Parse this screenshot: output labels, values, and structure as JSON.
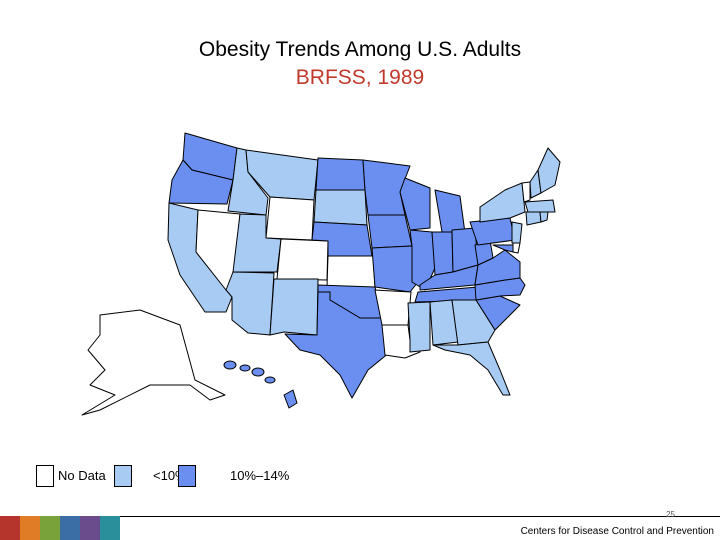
{
  "title": "Obesity Trends Among U.S. Adults",
  "subtitle": "BRFSS, 1989",
  "colors": {
    "no_data": "#ffffff",
    "lt10": "#a8cbf4",
    "p10_14": "#6b8ff0",
    "border": "#000000",
    "subtitle": "#c0392b"
  },
  "legend": [
    {
      "key": "no_data",
      "label": "No Data"
    },
    {
      "key": "lt10",
      "label": "<10%"
    },
    {
      "key": "p10_14",
      "label": "10%–14%"
    }
  ],
  "states": {
    "WA": "p10_14",
    "OR": "p10_14",
    "CA": "lt10",
    "NV": "no_data",
    "ID": "lt10",
    "MT": "lt10",
    "WY": "no_data",
    "UT": "lt10",
    "AZ": "lt10",
    "CO": "no_data",
    "NM": "lt10",
    "ND": "p10_14",
    "SD": "lt10",
    "NE": "p10_14",
    "KS": "no_data",
    "OK": "p10_14",
    "TX": "p10_14",
    "MN": "p10_14",
    "IA": "p10_14",
    "MO": "p10_14",
    "AR": "no_data",
    "LA": "no_data",
    "WI": "p10_14",
    "IL": "p10_14",
    "MI": "p10_14",
    "IN": "p10_14",
    "OH": "p10_14",
    "KY": "p10_14",
    "TN": "p10_14",
    "MS": "lt10",
    "AL": "lt10",
    "GA": "lt10",
    "FL": "lt10",
    "SC": "p10_14",
    "NC": "p10_14",
    "VA": "p10_14",
    "WV": "p10_14",
    "PA": "p10_14",
    "NY": "lt10",
    "VT": "no_data",
    "NH": "lt10",
    "ME": "lt10",
    "MA": "lt10",
    "CT": "lt10",
    "RI": "lt10",
    "NJ": "lt10",
    "DE": "no_data",
    "MD": "p10_14",
    "AK": "no_data",
    "HI": "p10_14"
  },
  "footer": {
    "page_number": "25",
    "organization": "Centers for Disease Control and Prevention",
    "bar_colors": [
      "#b5342b",
      "#e07b26",
      "#7aa23a",
      "#3a6ea5",
      "#6a4c8c",
      "#2a8f9a"
    ]
  }
}
